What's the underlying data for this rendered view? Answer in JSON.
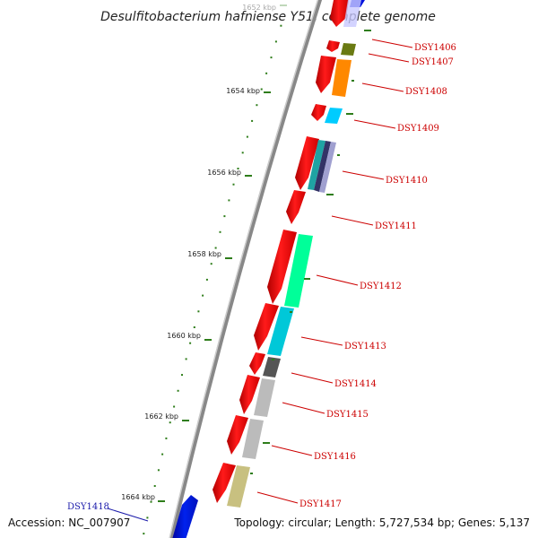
{
  "title": "Desulfitobacterium hafniense Y51, complete genome",
  "footer": {
    "accession": "Accession: NC_007907",
    "topology": "Topology: circular; Length: 5,727,534 bp; Genes: 5,137"
  },
  "colors": {
    "backbone": "#888888",
    "tick": "#2e7d1a",
    "label_red": "#cc0000",
    "label_blue": "#1a1aaa",
    "forward_gene": "#ee0000",
    "blue_gene": "#0011dd"
  },
  "scale": [
    {
      "label": "1652 kbp",
      "faded": true
    },
    {
      "label": "1654 kbp",
      "faded": false
    },
    {
      "label": "1656 kbp",
      "faded": false
    },
    {
      "label": "1658 kbp",
      "faded": false
    },
    {
      "label": "1660 kbp",
      "faded": false
    },
    {
      "label": "1662 kbp",
      "faded": false
    },
    {
      "label": "1664 kbp",
      "faded": false
    }
  ],
  "genes": [
    {
      "id": "DSY1406",
      "color": "#ff2222",
      "cog_color": "#6a7a12"
    },
    {
      "id": "DSY1407",
      "color": "#ff2222",
      "cog_color": "#6a7a12"
    },
    {
      "id": "DSY1408",
      "color": "#ff2222",
      "cog_color": "#ff8800"
    },
    {
      "id": "DSY1409",
      "color": "#ff2222",
      "cog_color": "#00ccff"
    },
    {
      "id": "DSY1410",
      "color": "#ff2222",
      "cog_color": "#1fa3a3"
    },
    {
      "id": "DSY1411",
      "color": "#ff2222",
      "cog_color": ""
    },
    {
      "id": "DSY1412",
      "color": "#ff2222",
      "cog_color": "#00ff99"
    },
    {
      "id": "DSY1413",
      "color": "#ff2222",
      "cog_color": "#00c8d8"
    },
    {
      "id": "DSY1414",
      "color": "#ff2222",
      "cog_color": "#666666"
    },
    {
      "id": "DSY1415",
      "color": "#ff2222",
      "cog_color": "#bbbbbb"
    },
    {
      "id": "DSY1416",
      "color": "#ff2222",
      "cog_color": "#bbbbbb"
    },
    {
      "id": "DSY1417",
      "color": "#ff2222",
      "cog_color": "#c8c080"
    }
  ],
  "reverse_gene": {
    "id": "DSY1418",
    "color": "#0011dd"
  }
}
